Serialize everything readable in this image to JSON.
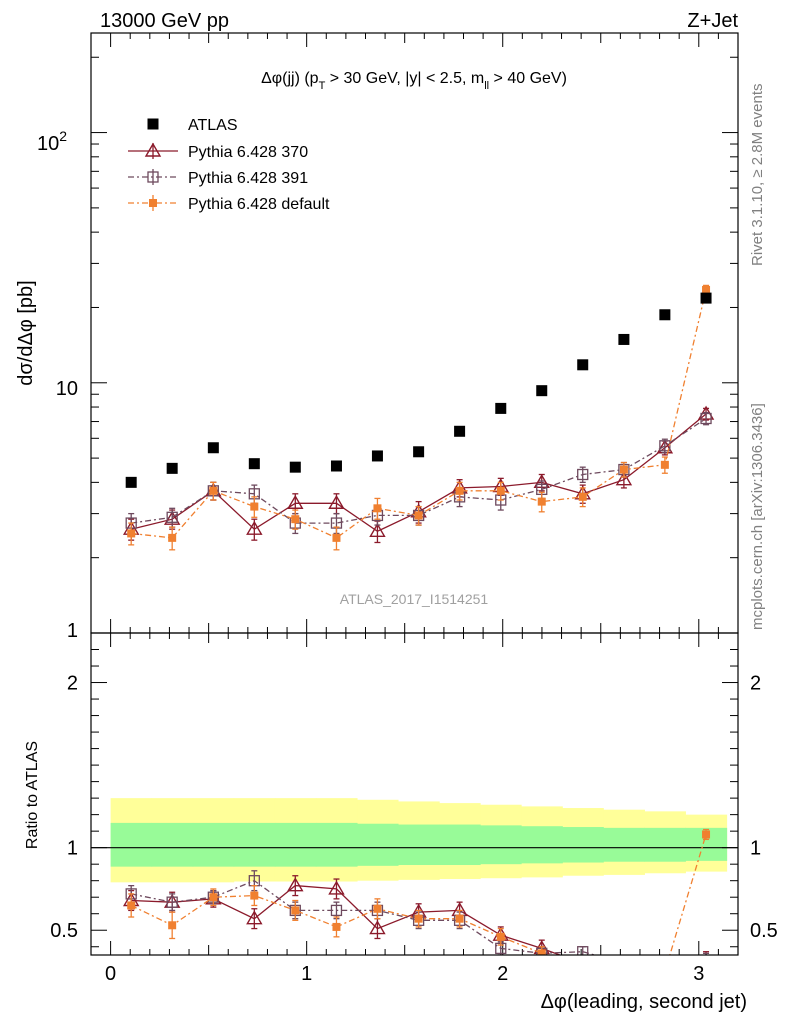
{
  "header": {
    "left": "13000 GeV pp",
    "right": "Z+Jet"
  },
  "side_labels": {
    "rivet": "Rivet 3.1.10, ≥ 2.8M events",
    "mcplots": "mcplots.cern.ch [arXiv:1306.3436]"
  },
  "colors": {
    "atlas": "#000000",
    "p370": "#8b1a2b",
    "p391": "#6e4a5e",
    "pdef": "#f08030",
    "band_inner": "#98fb98",
    "band_outer": "#ffff99"
  },
  "chart_data": [
    {
      "type": "scatter",
      "panel": "main",
      "title_parts": {
        "t1": "Δφ(jj) (p",
        "t1sub": "T",
        "t2": " > 30 GeV, |y| < 2.5, m",
        "t2sub": "ll",
        "t3": " > 40 GeV)"
      },
      "ylabel": "dσ/dΔφ [pb]",
      "yscale": "log",
      "ylim": [
        1.0,
        250
      ],
      "xlim": [
        -0.1,
        3.2
      ],
      "y_ticklabels": {
        "t1": "1",
        "t10": "10",
        "t100": "10",
        "t100exp": "2"
      },
      "watermark": "ATLAS_2017_I1514251",
      "legend_position": "top-left",
      "x": [
        0.105,
        0.314,
        0.524,
        0.733,
        0.942,
        1.152,
        1.361,
        1.571,
        1.78,
        1.99,
        2.199,
        2.408,
        2.618,
        2.827,
        3.037
      ],
      "series": [
        {
          "name": "ATLAS",
          "marker": "filled-square",
          "values": [
            4.0,
            4.55,
            5.5,
            4.75,
            4.6,
            4.65,
            5.1,
            5.3,
            6.4,
            7.9,
            9.3,
            11.8,
            14.9,
            18.7,
            21.8
          ]
        },
        {
          "name": "Pythia 6.428 370",
          "marker": "open-triangle",
          "values": [
            2.6,
            2.85,
            3.7,
            2.6,
            3.3,
            3.3,
            2.55,
            3.05,
            3.8,
            3.85,
            4.0,
            3.6,
            4.1,
            5.5,
            7.5
          ],
          "errors": [
            0.25,
            0.25,
            0.3,
            0.25,
            0.3,
            0.3,
            0.25,
            0.3,
            0.3,
            0.3,
            0.3,
            0.3,
            0.3,
            0.35,
            0.4
          ]
        },
        {
          "name": "Pythia 6.428 391",
          "marker": "open-square",
          "values": [
            2.75,
            2.9,
            3.7,
            3.6,
            2.75,
            2.75,
            2.95,
            2.95,
            3.5,
            3.4,
            3.75,
            4.3,
            4.5,
            5.6,
            7.2
          ],
          "errors": [
            0.25,
            0.25,
            0.3,
            0.3,
            0.25,
            0.25,
            0.25,
            0.25,
            0.3,
            0.3,
            0.3,
            0.3,
            0.3,
            0.35,
            0.4
          ]
        },
        {
          "name": "Pythia 6.428 default",
          "marker": "filled-small-square",
          "values": [
            2.5,
            2.4,
            3.7,
            3.2,
            2.85,
            2.4,
            3.15,
            2.95,
            3.7,
            3.7,
            3.35,
            3.5,
            4.5,
            4.7,
            23.5
          ],
          "errors": [
            0.25,
            0.25,
            0.3,
            0.3,
            0.25,
            0.25,
            0.3,
            0.25,
            0.3,
            0.3,
            0.3,
            0.3,
            0.3,
            0.35,
            1.0
          ]
        }
      ]
    },
    {
      "type": "line",
      "panel": "ratio",
      "ylabel": "Ratio to ATLAS",
      "xlabel": "Δφ(leading, second jet)",
      "ylim": [
        0.35,
        2.3
      ],
      "xlim": [
        -0.1,
        3.2
      ],
      "x_ticklabels": [
        "0",
        "1",
        "2",
        "3"
      ],
      "y_ticklabels": [
        "0.5",
        "1",
        "2"
      ],
      "band_x": [
        0.0,
        0.209,
        0.419,
        0.628,
        0.838,
        1.047,
        1.257,
        1.466,
        1.676,
        1.885,
        2.094,
        2.304,
        2.513,
        2.723,
        2.932,
        3.142
      ],
      "band_inner": {
        "lo": [
          0.885,
          0.885,
          0.885,
          0.885,
          0.885,
          0.885,
          0.89,
          0.895,
          0.895,
          0.9,
          0.905,
          0.91,
          0.915,
          0.915,
          0.92
        ],
        "hi": [
          1.15,
          1.15,
          1.15,
          1.15,
          1.15,
          1.15,
          1.145,
          1.14,
          1.14,
          1.135,
          1.13,
          1.125,
          1.12,
          1.12,
          1.12
        ]
      },
      "band_outer": {
        "lo": [
          0.79,
          0.79,
          0.79,
          0.795,
          0.795,
          0.795,
          0.8,
          0.805,
          0.81,
          0.815,
          0.82,
          0.83,
          0.835,
          0.845,
          0.855
        ],
        "hi": [
          1.3,
          1.3,
          1.3,
          1.3,
          1.3,
          1.3,
          1.29,
          1.28,
          1.27,
          1.26,
          1.25,
          1.24,
          1.23,
          1.22,
          1.2
        ]
      },
      "x": [
        0.105,
        0.314,
        0.524,
        0.733,
        0.942,
        1.152,
        1.361,
        1.571,
        1.78,
        1.99,
        2.199,
        2.408,
        2.618,
        2.827,
        3.037
      ],
      "series": [
        {
          "name": "Pythia 6.428 370",
          "marker": "open-triangle",
          "values": [
            0.68,
            0.67,
            0.69,
            0.57,
            0.77,
            0.75,
            0.51,
            0.61,
            0.62,
            0.47,
            0.39,
            0.3,
            0.27,
            0.29,
            0.34
          ],
          "errors": [
            0.06,
            0.06,
            0.05,
            0.06,
            0.06,
            0.06,
            0.06,
            0.05,
            0.05,
            0.05,
            0.05,
            0.03,
            0.03,
            0.03,
            0.03
          ]
        },
        {
          "name": "Pythia 6.428 391",
          "marker": "open-square",
          "values": [
            0.72,
            0.67,
            0.7,
            0.8,
            0.62,
            0.62,
            0.62,
            0.56,
            0.56,
            0.39,
            0.36,
            0.37,
            0.3,
            0.3,
            0.33
          ],
          "errors": [
            0.05,
            0.05,
            0.04,
            0.06,
            0.05,
            0.05,
            0.05,
            0.05,
            0.05,
            0.04,
            0.04,
            0.03,
            0.03,
            0.03,
            0.03
          ]
        },
        {
          "name": "Pythia 6.428 default",
          "marker": "filled-small-square",
          "values": [
            0.65,
            0.53,
            0.7,
            0.71,
            0.62,
            0.52,
            0.63,
            0.57,
            0.57,
            0.46,
            0.36,
            0.3,
            0.3,
            0.25,
            1.08
          ],
          "errors": [
            0.07,
            0.08,
            0.05,
            0.06,
            0.06,
            0.06,
            0.06,
            0.05,
            0.05,
            0.05,
            0.04,
            0.03,
            0.03,
            0.03,
            0.03
          ]
        }
      ]
    }
  ]
}
